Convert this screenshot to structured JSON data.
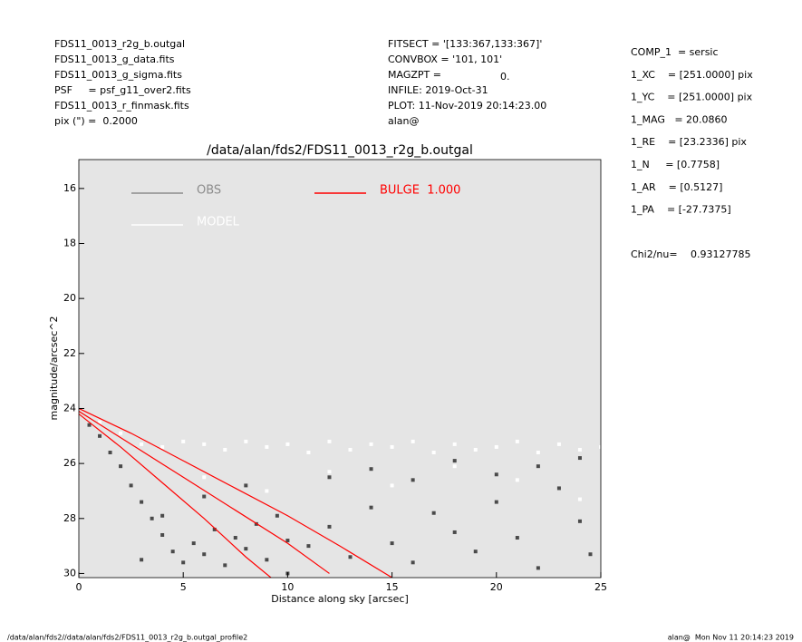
{
  "header": {
    "left": [
      "FDS11_0013_r2g_b.outgal",
      "FDS11_0013_g_data.fits",
      "FDS11_0013_g_sigma.fits",
      "PSF     = psf_g11_over2.fits",
      "FDS11_0013_r_finmask.fits",
      "pix (\") =  0.2000"
    ],
    "middle": [
      "FITSECT = '[133:367,133:367]'",
      "CONVBOX = '101, 101'",
      "MAGZPT =",
      "INFILE: 2019-Oct-31",
      "PLOT: 11-Nov-2019 20:14:23.00",
      "alan@"
    ],
    "magzpt_value": "0.",
    "right": [
      "COMP_1  = sersic",
      "1_XC    = [251.0000] pix",
      "1_YC    = [251.0000] pix",
      "1_MAG   = 20.0860",
      "1_RE    = [23.2336] pix",
      "1_N     = [0.7758]",
      "1_AR    = [0.5127]",
      "1_PA    = [-27.7375]"
    ],
    "chi2_label": "Chi2/nu=",
    "chi2_value": "0.93127785"
  },
  "footer": {
    "left": "/data/alan/fds2//data/alan/fds2/FDS11_0013_r2g_b.outgal_profile2",
    "right": "alan@  Mon Nov 11 20:14:23 2019"
  },
  "chart_data": {
    "type": "scatter",
    "title": "/data/alan/fds2/FDS11_0013_r2g_b.outgal",
    "x_label": "Distance along sky [arcsec]",
    "y_label": "magnitude/arcsec^2",
    "xlim": [
      0,
      25
    ],
    "xticks": [
      0,
      5,
      10,
      15,
      20,
      25
    ],
    "ylim": [
      30.15,
      14.95
    ],
    "yticks": [
      16,
      18,
      20,
      22,
      24,
      26,
      28,
      30
    ],
    "background": "#e5e5e5",
    "series": [
      {
        "name": "OBS",
        "type": "scatter",
        "color": "#8c8c8c",
        "point_color": "#4a4a4a",
        "x": [
          0.5,
          1,
          1.5,
          2,
          2.5,
          3,
          3.5,
          4,
          4.5,
          5,
          5.5,
          6,
          6.5,
          7,
          7.5,
          8,
          8.5,
          9,
          9.5,
          10,
          11,
          12,
          13,
          14,
          15,
          16,
          17,
          18,
          19,
          20,
          21,
          22,
          23,
          24,
          24.5,
          3,
          4,
          6,
          8,
          10,
          12,
          14,
          16,
          18,
          20,
          22,
          24
        ],
        "values": [
          24.6,
          25.0,
          25.6,
          26.1,
          26.8,
          27.4,
          28.0,
          28.6,
          29.2,
          29.6,
          28.9,
          29.3,
          28.4,
          29.7,
          28.7,
          29.1,
          28.2,
          29.5,
          27.9,
          28.8,
          29.0,
          28.3,
          29.4,
          27.6,
          28.9,
          29.6,
          27.8,
          28.5,
          29.2,
          27.4,
          28.7,
          29.8,
          26.9,
          28.1,
          29.3,
          29.5,
          27.9,
          27.2,
          26.8,
          30.0,
          26.5,
          26.2,
          26.6,
          25.9,
          26.4,
          26.1,
          25.8
        ]
      },
      {
        "name": "MODEL",
        "type": "scatter",
        "color": "#ffffff",
        "point_color": "#ffffff",
        "x": [
          1,
          2,
          3,
          4,
          5,
          6,
          7,
          8,
          9,
          10,
          11,
          12,
          13,
          14,
          15,
          16,
          17,
          18,
          19,
          20,
          21,
          22,
          23,
          24,
          25,
          6,
          9,
          12,
          15,
          18,
          21,
          24
        ],
        "values": [
          24.5,
          24.9,
          25.3,
          25.4,
          25.2,
          25.3,
          25.5,
          25.2,
          25.4,
          25.3,
          25.6,
          25.2,
          25.5,
          25.3,
          25.4,
          25.2,
          25.6,
          25.3,
          25.5,
          25.4,
          25.2,
          25.6,
          25.3,
          25.5,
          25.4,
          26.5,
          27.0,
          26.3,
          26.8,
          26.1,
          26.6,
          27.3
        ]
      },
      {
        "name": "BULGE  1.000",
        "type": "line",
        "color": "#ff0000",
        "x": [
          0,
          2.5,
          5,
          7.5,
          10,
          12.5,
          15
        ],
        "values": [
          24.0,
          24.9,
          25.9,
          26.9,
          27.9,
          29.0,
          30.15
        ]
      },
      {
        "type": "line",
        "color": "#ff0000",
        "x": [
          0,
          2.5,
          5,
          7.5,
          10,
          12
        ],
        "values": [
          24.1,
          25.3,
          26.5,
          27.7,
          28.9,
          30.0
        ]
      },
      {
        "type": "line",
        "color": "#ff0000",
        "x": [
          0,
          2,
          4,
          6,
          8,
          9.2
        ],
        "values": [
          24.2,
          25.4,
          26.7,
          28.0,
          29.4,
          30.15
        ]
      }
    ]
  }
}
